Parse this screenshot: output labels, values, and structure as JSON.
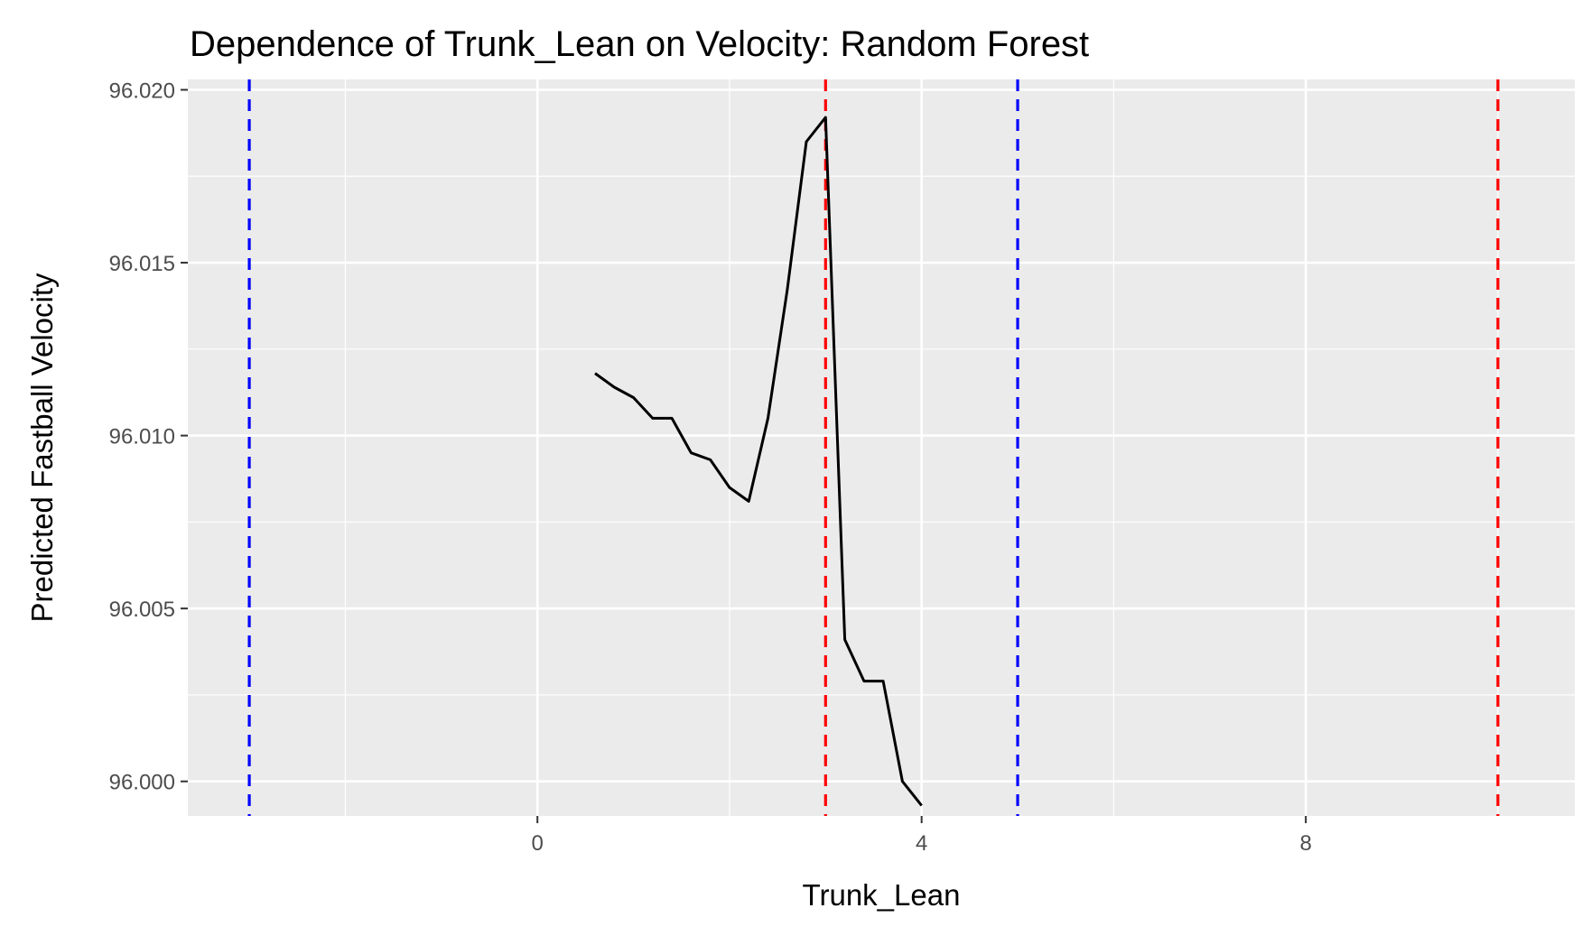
{
  "chart_data": {
    "type": "line",
    "title": "Dependence of Trunk_Lean on Velocity: Random Forest",
    "xlabel": "Trunk_Lean",
    "ylabel": "Predicted Fastball Velocity",
    "xlim": [
      -3.64,
      10.8
    ],
    "ylim": [
      95.999,
      96.0203
    ],
    "x_ticks": [
      0,
      4,
      8
    ],
    "x_tick_labels": [
      "0",
      "4",
      "8"
    ],
    "x_minor_ticks": [
      -2,
      2,
      6,
      10
    ],
    "y_ticks": [
      96.0,
      96.005,
      96.01,
      96.015,
      96.02
    ],
    "y_tick_labels": [
      "96.000",
      "96.005",
      "96.010",
      "96.015",
      "96.020"
    ],
    "y_minor_ticks": [
      96.0025,
      96.0075,
      96.0125,
      96.0175
    ],
    "grid": true,
    "background_color": "#ebebeb",
    "grid_color": "#ffffff",
    "series": [
      {
        "color": "#000000",
        "x": [
          0.6,
          0.8,
          1.0,
          1.2,
          1.4,
          1.6,
          1.8,
          2.0,
          2.2,
          2.4,
          2.6,
          2.8,
          3.0,
          3.2,
          3.4,
          3.6,
          3.8,
          4.0
        ],
        "y": [
          96.0118,
          96.0114,
          96.0111,
          96.0105,
          96.0105,
          96.0095,
          96.0093,
          96.0085,
          96.0081,
          96.0105,
          96.0142,
          96.0185,
          96.0192,
          96.0041,
          96.0029,
          96.0029,
          96.0,
          95.9993
        ]
      }
    ],
    "vlines": [
      {
        "x": -3.0,
        "color": "#0000ff",
        "style": "dashed"
      },
      {
        "x": 3.0,
        "color": "#ff0000",
        "style": "dashed"
      },
      {
        "x": 5.0,
        "color": "#0000ff",
        "style": "dashed"
      },
      {
        "x": 10.0,
        "color": "#ff0000",
        "style": "dashed"
      }
    ]
  }
}
